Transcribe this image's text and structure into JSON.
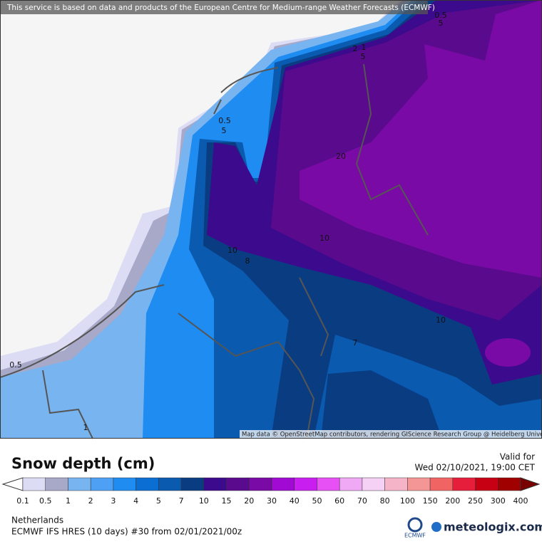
{
  "header": {
    "notice": "This service is based on data and products of the European Centre for Medium-range Weather Forecasts (ECMWF)"
  },
  "map": {
    "attribution": "Map data © OpenStreetMap contributors, rendering GIScience Research Group @ Heidelberg University",
    "contour_labels": [
      "0.5",
      "5",
      "0.5",
      "5",
      "2",
      "1",
      "5",
      "20",
      "10",
      "10",
      "8",
      "10",
      "7",
      "0.5",
      "1"
    ]
  },
  "footer": {
    "title": "Snow depth (cm)",
    "valid_label": "Valid for",
    "valid_time": "Wed 02/10/2021, 19:00 CET",
    "region": "Netherlands",
    "model": "ECMWF IFS HRES (10 days) #30 from  02/01/2021/00z",
    "ecmwf_logo": "ECMWF",
    "brand": "meteologix.com"
  },
  "legend": {
    "labels": [
      "0.1",
      "0.5",
      "1",
      "2",
      "3",
      "4",
      "5",
      "7",
      "10",
      "15",
      "20",
      "30",
      "40",
      "50",
      "60",
      "70",
      "80",
      "100",
      "150",
      "200",
      "250",
      "300",
      "400"
    ],
    "colors": [
      "#dcdcf5",
      "#a8a8c8",
      "#78b4f0",
      "#4ea0f5",
      "#1e8cf0",
      "#0a6ed2",
      "#0a5aaf",
      "#0a3c82",
      "#3c0a8c",
      "#5a0a8c",
      "#7a0aa5",
      "#a00ad2",
      "#c81ef0",
      "#e650f5",
      "#f0aaf5",
      "#f5d2f5",
      "#f5b4c8",
      "#f59696",
      "#f06464",
      "#e61e3c",
      "#c80014",
      "#a00000"
    ]
  }
}
